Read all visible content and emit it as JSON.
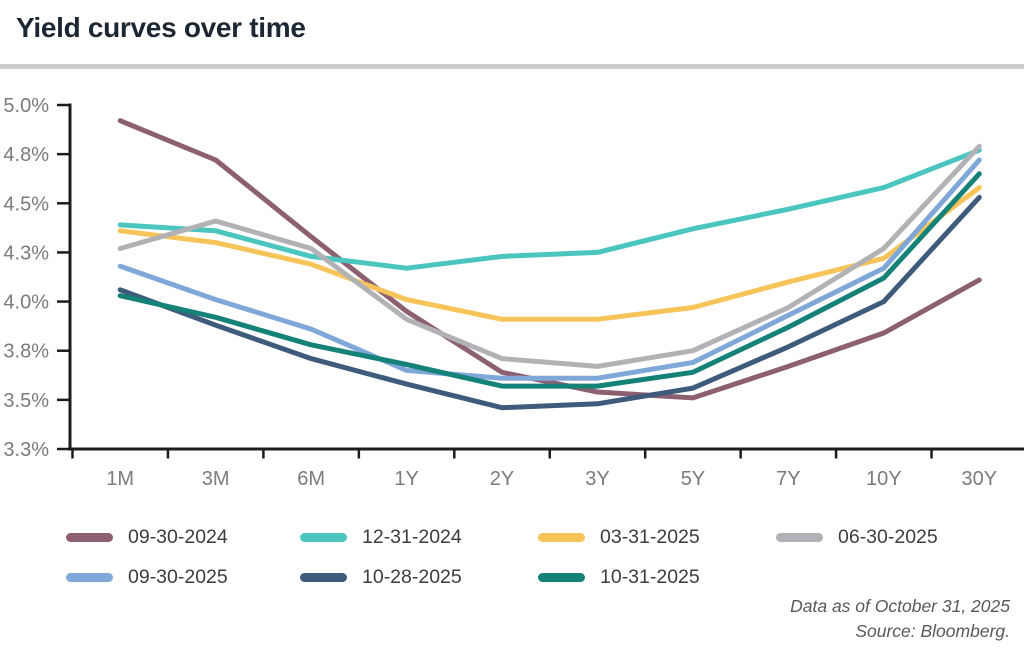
{
  "page": {
    "title": "Yield curves over time",
    "footer": {
      "line1": "Data as of October 31, 2025",
      "line2": "Source: Bloomberg."
    }
  },
  "chart_data": {
    "type": "line",
    "title": "Yield curves over time",
    "categories": [
      "1M",
      "3M",
      "6M",
      "1Y",
      "2Y",
      "3Y",
      "5Y",
      "7Y",
      "10Y",
      "30Y"
    ],
    "xlabel": "",
    "ylabel": "",
    "y_axis": {
      "unit": "%",
      "range": [
        3.25,
        5.0
      ],
      "grid": false,
      "ticks": [
        {
          "value": 5.0,
          "label": "5.0%"
        },
        {
          "value": 4.75,
          "label": "4.8%"
        },
        {
          "value": 4.5,
          "label": "4.5%"
        },
        {
          "value": 4.25,
          "label": "4.3%"
        },
        {
          "value": 4.0,
          "label": "4.0%"
        },
        {
          "value": 3.75,
          "label": "3.8%"
        },
        {
          "value": 3.5,
          "label": "3.5%"
        },
        {
          "value": 3.25,
          "label": "3.3%"
        }
      ]
    },
    "legend_position": "bottom",
    "series": [
      {
        "name": "09-30-2024",
        "color": "#8d6071",
        "values": [
          4.92,
          4.72,
          4.33,
          3.95,
          3.64,
          3.54,
          3.51,
          3.67,
          3.84,
          4.11
        ]
      },
      {
        "name": "12-31-2024",
        "color": "#4ac6be",
        "values": [
          4.39,
          4.36,
          4.23,
          4.17,
          4.23,
          4.25,
          4.37,
          4.47,
          4.58,
          4.77
        ]
      },
      {
        "name": "03-31-2025",
        "color": "#f7c45a",
        "values": [
          4.36,
          4.3,
          4.19,
          4.01,
          3.91,
          3.91,
          3.97,
          4.1,
          4.22,
          4.58
        ]
      },
      {
        "name": "06-30-2025",
        "color": "#b2b2b6",
        "values": [
          4.27,
          4.41,
          4.27,
          3.91,
          3.71,
          3.67,
          3.75,
          3.97,
          4.27,
          4.79
        ]
      },
      {
        "name": "09-30-2025",
        "color": "#7fa8d9",
        "values": [
          4.18,
          4.01,
          3.86,
          3.65,
          3.61,
          3.61,
          3.69,
          3.93,
          4.17,
          4.72
        ]
      },
      {
        "name": "10-28-2025",
        "color": "#3e5b7c",
        "values": [
          4.06,
          3.88,
          3.71,
          3.58,
          3.46,
          3.48,
          3.56,
          3.77,
          4.0,
          4.53
        ]
      },
      {
        "name": "10-31-2025",
        "color": "#158278",
        "values": [
          4.03,
          3.92,
          3.78,
          3.68,
          3.57,
          3.57,
          3.64,
          3.87,
          4.12,
          4.65
        ]
      }
    ]
  }
}
